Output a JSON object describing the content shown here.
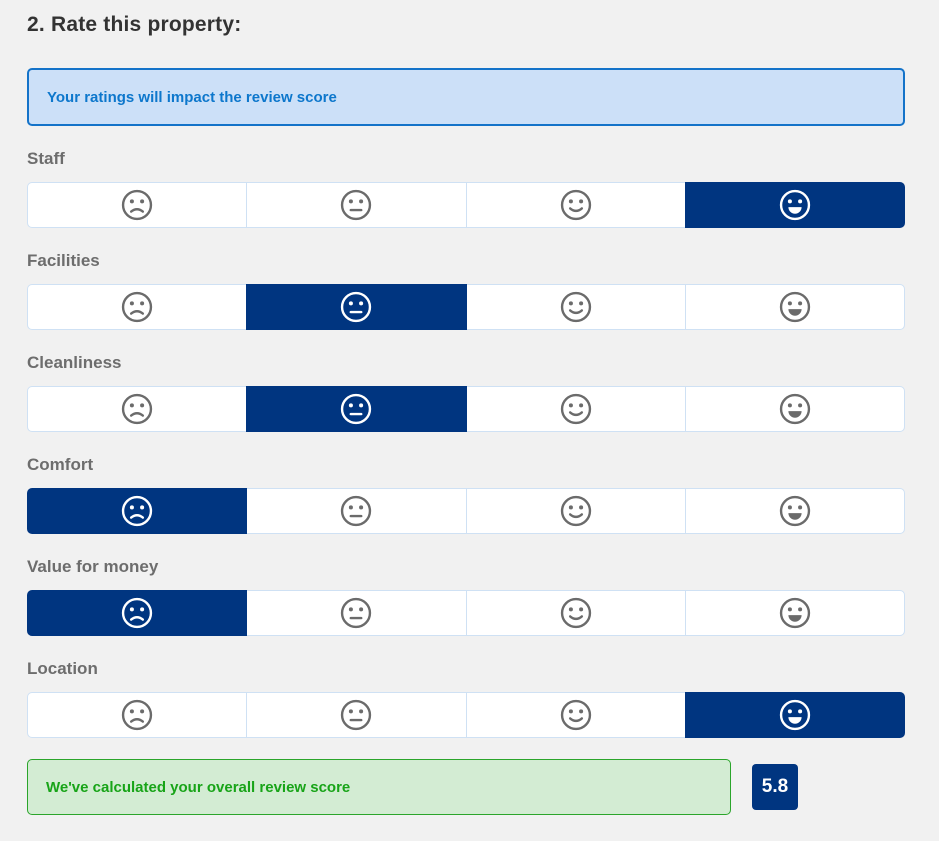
{
  "heading": "2. Rate this property:",
  "info_banner": {
    "text": "Your ratings will impact the review score"
  },
  "rating_options": [
    {
      "value": 1,
      "icon": "frown-face-icon"
    },
    {
      "value": 2,
      "icon": "neutral-face-icon"
    },
    {
      "value": 3,
      "icon": "smile-face-icon"
    },
    {
      "value": 4,
      "icon": "grin-face-icon"
    }
  ],
  "categories": [
    {
      "label": "Staff",
      "selected": 4
    },
    {
      "label": "Facilities",
      "selected": 2
    },
    {
      "label": "Cleanliness",
      "selected": 2
    },
    {
      "label": "Comfort",
      "selected": 1
    },
    {
      "label": "Value for money",
      "selected": 1
    },
    {
      "label": "Location",
      "selected": 4
    }
  ],
  "result_banner": {
    "text": "We've calculated your overall review score"
  },
  "score": {
    "value": "5.8"
  },
  "colors": {
    "page_bg": "#f1f1f1",
    "selected_bg": "#003580",
    "cell_border": "#cfe1f4",
    "icon_gray": "#6b6b6b",
    "info_bg": "#cce0f8",
    "info_border": "#1473c9",
    "info_text": "#0d77cc",
    "success_bg": "#d3ecd3",
    "success_border": "#2ba52b",
    "success_text": "#18a418",
    "label_color": "#6d6d6d",
    "heading_color": "#333333"
  }
}
